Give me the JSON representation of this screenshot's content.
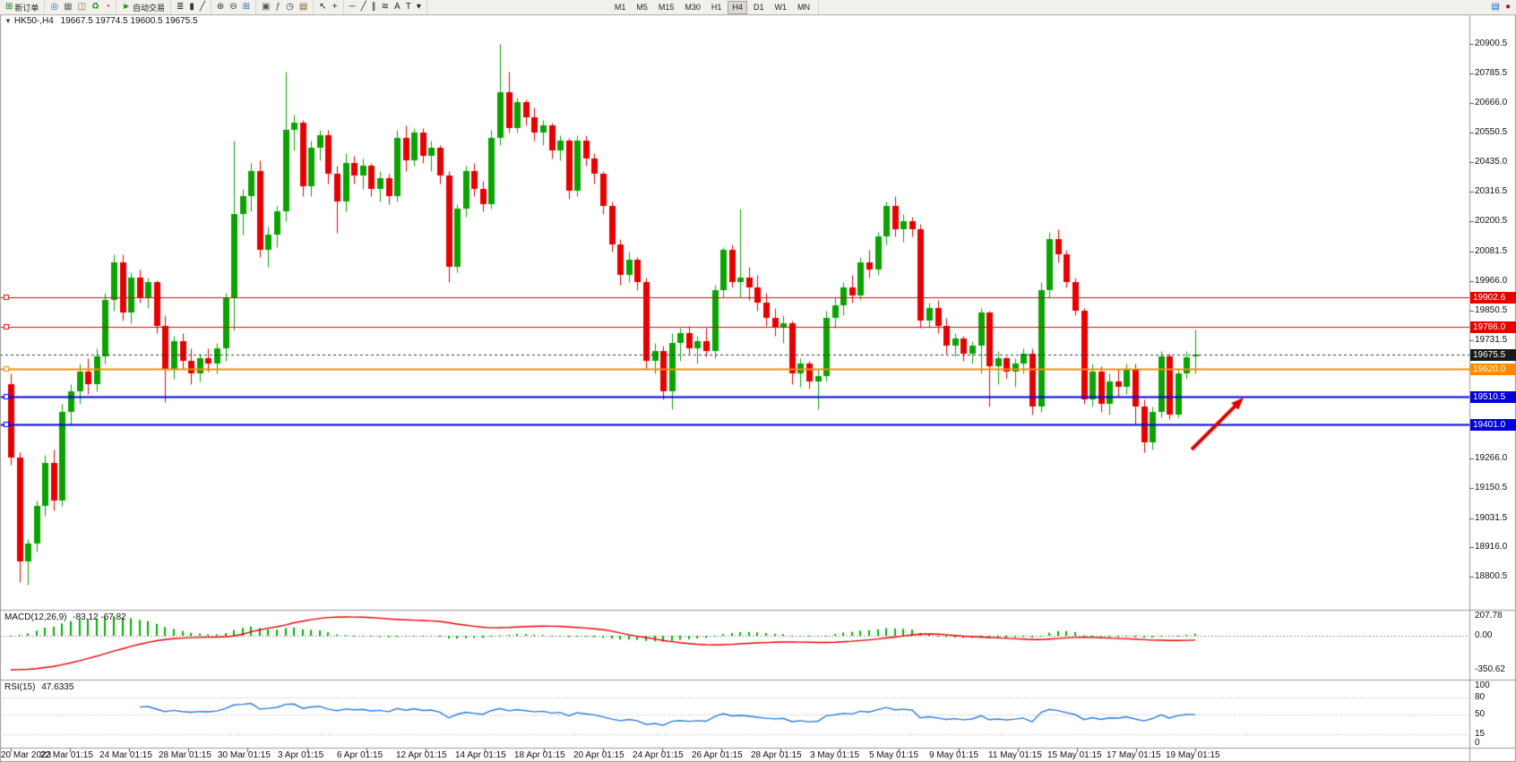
{
  "toolbar": {
    "groups": [
      {
        "name": "order-group",
        "items": [
          {
            "name": "new-order-button",
            "icon": "candle-plus",
            "icon_color": "#1a7a1a",
            "label": "新订单"
          }
        ]
      },
      {
        "name": "panels-group",
        "items": [
          {
            "name": "market-watch-button",
            "icon": "compass",
            "icon_color": "#1f5fbf"
          },
          {
            "name": "data-window-button",
            "icon": "grid",
            "icon_color": "#666666"
          },
          {
            "name": "navigator-button",
            "icon": "person",
            "icon_color": "#8a6d3b"
          },
          {
            "name": "terminal-button",
            "icon": "recycle",
            "icon_color": "#1a8a1a"
          },
          {
            "name": "strategy-tester-button",
            "icon": "gauge",
            "icon_color": "#b03030"
          }
        ]
      },
      {
        "name": "autotrade-group",
        "items": [
          {
            "name": "auto-trading-button",
            "icon": "play",
            "icon_color": "#14a014",
            "label": "自动交易"
          }
        ]
      },
      {
        "name": "chart-type-group",
        "items": [
          {
            "name": "bar-chart-type-button",
            "icon": "bars",
            "icon_color": "#333333"
          },
          {
            "name": "candlestick-type-button",
            "icon": "candles",
            "icon_color": "#333333"
          },
          {
            "name": "line-chart-type-button",
            "icon": "line",
            "icon_color": "#333333"
          }
        ]
      },
      {
        "name": "zoom-group",
        "items": [
          {
            "name": "zoom-in-button",
            "icon": "zoom-in",
            "icon_color": "#333333"
          },
          {
            "name": "zoom-out-button",
            "icon": "zoom-out",
            "icon_color": "#333333"
          },
          {
            "name": "tile-windows-button",
            "icon": "tiles",
            "icon_color": "#2a6db0"
          }
        ]
      },
      {
        "name": "tools-group",
        "items": [
          {
            "name": "arrange-windows-button",
            "icon": "arrange",
            "icon_color": "#555555"
          },
          {
            "name": "indicators-button",
            "icon": "indicator",
            "icon_color": "#1a7a1a"
          },
          {
            "name": "periods-dropdown-button",
            "icon": "clock",
            "icon_color": "#333333"
          },
          {
            "name": "templates-dropdown-button",
            "icon": "template",
            "icon_color": "#7a5a2a"
          }
        ]
      },
      {
        "name": "cursor-group",
        "items": [
          {
            "name": "cursor-button",
            "icon": "cursor",
            "icon_color": "#222222"
          },
          {
            "name": "crosshair-button",
            "icon": "crosshair",
            "icon_color": "#222222"
          }
        ]
      },
      {
        "name": "draw-group",
        "items": [
          {
            "name": "horizontal-line-button",
            "icon": "hline",
            "icon_color": "#222222"
          },
          {
            "name": "trendline-button",
            "icon": "trendline",
            "icon_color": "#222222"
          },
          {
            "name": "equidistant-channel-button",
            "icon": "channel",
            "icon_color": "#222222"
          },
          {
            "name": "fibonacci-button",
            "icon": "fibo",
            "icon_color": "#222222"
          },
          {
            "name": "text-button",
            "icon": "text-a",
            "icon_color": "#222222"
          },
          {
            "name": "label-button",
            "icon": "text-t",
            "icon_color": "#222222"
          },
          {
            "name": "arrows-dropdown-button",
            "icon": "arrow-down",
            "icon_color": "#222222"
          }
        ]
      }
    ],
    "timeframes": [
      "M1",
      "M5",
      "M15",
      "M30",
      "H1",
      "H4",
      "D1",
      "W1",
      "MN"
    ],
    "active_timeframe": "H4",
    "right_items": [
      {
        "name": "new-chart-window-button",
        "icon": "blue-doc",
        "icon_color": "#1f5fbf"
      },
      {
        "name": "alert-button",
        "icon": "alert",
        "icon_color": "#d01010"
      }
    ]
  },
  "chart": {
    "symbol_period": "HK50-,H4",
    "ohlc": "19667.5 19774.5 19600.5 19675.5",
    "current_price": "19675.5",
    "up_color": "#0aa300",
    "down_color": "#e60000",
    "price_ticks": [
      "20900.5",
      "20785.5",
      "20666.0",
      "20550.5",
      "20435.0",
      "20316.5",
      "20200.5",
      "20081.5",
      "19966.0",
      "19850.5",
      "19731.5",
      "19266.0",
      "19150.5",
      "19031.5",
      "18916.0",
      "18800.5"
    ],
    "levels": [
      {
        "price": 19902.6,
        "label": "19902.6",
        "color": "#e60000",
        "width": 1
      },
      {
        "price": 19786.0,
        "label": "19786.0",
        "color": "#e60000",
        "width": 1
      },
      {
        "price": 19620.0,
        "label": "19620.0",
        "color": "#ff8a00",
        "width": 2
      },
      {
        "price": 19510.5,
        "label": "19510.5",
        "color": "#0000dd",
        "width": 2
      },
      {
        "price": 19401.0,
        "label": "19401.0",
        "color": "#0000dd",
        "width": 2
      }
    ]
  },
  "chart_data": {
    "type": "candlestick",
    "symbol": "HK50-",
    "timeframe": "H4",
    "y_axis_range": [
      18800.5,
      20900.5
    ],
    "ohlc_current": {
      "open": 19667.5,
      "high": 19774.5,
      "low": 19600.5,
      "close": 19675.5
    },
    "x_labels": [
      "20 Mar 2023",
      "22 Mar 01:15",
      "24 Mar 01:15",
      "28 Mar 01:15",
      "30 Mar 01:15",
      "3 Apr 01:15",
      "6 Apr 01:15",
      "12 Apr 01:15",
      "14 Apr 01:15",
      "18 Apr 01:15",
      "20 Apr 01:15",
      "24 Apr 01:15",
      "26 Apr 01:15",
      "28 Apr 01:15",
      "3 May 01:15",
      "5 May 01:15",
      "9 May 01:15",
      "11 May 01:15",
      "15 May 01:15",
      "17 May 01:15",
      "19 May 01:15"
    ],
    "candles": [
      [
        19560,
        19600,
        19240,
        19270
      ],
      [
        19270,
        19290,
        18780,
        18860
      ],
      [
        18860,
        18950,
        18770,
        18930
      ],
      [
        18930,
        19100,
        18900,
        19080
      ],
      [
        19080,
        19280,
        19040,
        19250
      ],
      [
        19250,
        19300,
        19060,
        19100
      ],
      [
        19100,
        19480,
        19080,
        19450
      ],
      [
        19450,
        19560,
        19400,
        19530
      ],
      [
        19530,
        19640,
        19480,
        19610
      ],
      [
        19610,
        19660,
        19520,
        19560
      ],
      [
        19560,
        19700,
        19530,
        19670
      ],
      [
        19670,
        19920,
        19640,
        19890
      ],
      [
        19890,
        20070,
        19850,
        20040
      ],
      [
        20040,
        20070,
        19810,
        19840
      ],
      [
        19840,
        20000,
        19800,
        19980
      ],
      [
        19980,
        20010,
        19880,
        19900
      ],
      [
        19900,
        19980,
        19860,
        19960
      ],
      [
        19960,
        19970,
        19760,
        19790
      ],
      [
        19790,
        19830,
        19490,
        19620
      ],
      [
        19620,
        19750,
        19580,
        19730
      ],
      [
        19730,
        19760,
        19620,
        19650
      ],
      [
        19650,
        19700,
        19560,
        19600
      ],
      [
        19600,
        19680,
        19570,
        19660
      ],
      [
        19660,
        19700,
        19610,
        19640
      ],
      [
        19640,
        19720,
        19600,
        19700
      ],
      [
        19700,
        19920,
        19650,
        19900
      ],
      [
        19900,
        20520,
        19770,
        20230
      ],
      [
        20230,
        20330,
        20150,
        20300
      ],
      [
        20300,
        20430,
        20240,
        20400
      ],
      [
        20400,
        20440,
        20060,
        20090
      ],
      [
        20090,
        20180,
        20020,
        20150
      ],
      [
        20150,
        20260,
        20100,
        20240
      ],
      [
        20240,
        20790,
        20200,
        20560
      ],
      [
        20560,
        20620,
        20480,
        20590
      ],
      [
        20590,
        20600,
        20300,
        20340
      ],
      [
        20340,
        20520,
        20300,
        20490
      ],
      [
        20490,
        20560,
        20440,
        20540
      ],
      [
        20540,
        20560,
        20350,
        20390
      ],
      [
        20390,
        20420,
        20155,
        20280
      ],
      [
        20280,
        20470,
        20240,
        20430
      ],
      [
        20430,
        20460,
        20350,
        20380
      ],
      [
        20380,
        20450,
        20330,
        20420
      ],
      [
        20420,
        20430,
        20300,
        20330
      ],
      [
        20330,
        20400,
        20280,
        20370
      ],
      [
        20370,
        20390,
        20270,
        20300
      ],
      [
        20300,
        20560,
        20280,
        20530
      ],
      [
        20530,
        20580,
        20400,
        20440
      ],
      [
        20440,
        20570,
        20420,
        20550
      ],
      [
        20550,
        20570,
        20430,
        20460
      ],
      [
        20460,
        20520,
        20400,
        20490
      ],
      [
        20490,
        20500,
        20350,
        20380
      ],
      [
        20380,
        20400,
        19960,
        20020
      ],
      [
        20020,
        20270,
        20000,
        20250
      ],
      [
        20250,
        20420,
        20220,
        20400
      ],
      [
        20400,
        20430,
        20300,
        20330
      ],
      [
        20330,
        20360,
        20240,
        20270
      ],
      [
        20270,
        20560,
        20250,
        20530
      ],
      [
        20530,
        20900,
        20500,
        20710
      ],
      [
        20710,
        20790,
        20550,
        20570
      ],
      [
        20570,
        20690,
        20550,
        20670
      ],
      [
        20670,
        20680,
        20580,
        20610
      ],
      [
        20610,
        20650,
        20520,
        20550
      ],
      [
        20550,
        20600,
        20500,
        20580
      ],
      [
        20580,
        20590,
        20450,
        20480
      ],
      [
        20480,
        20540,
        20440,
        20520
      ],
      [
        20520,
        20530,
        20290,
        20320
      ],
      [
        20320,
        20540,
        20300,
        20520
      ],
      [
        20520,
        20540,
        20420,
        20450
      ],
      [
        20450,
        20470,
        20350,
        20390
      ],
      [
        20390,
        20400,
        20230,
        20260
      ],
      [
        20260,
        20280,
        20080,
        20110
      ],
      [
        20110,
        20130,
        19950,
        19990
      ],
      [
        19990,
        20080,
        19960,
        20050
      ],
      [
        20050,
        20060,
        19930,
        19960
      ],
      [
        19960,
        19980,
        19620,
        19650
      ],
      [
        19650,
        19720,
        19600,
        19690
      ],
      [
        19690,
        19710,
        19500,
        19530
      ],
      [
        19530,
        19760,
        19460,
        19720
      ],
      [
        19720,
        19780,
        19650,
        19760
      ],
      [
        19760,
        19790,
        19680,
        19700
      ],
      [
        19700,
        19750,
        19640,
        19730
      ],
      [
        19730,
        19780,
        19670,
        19690
      ],
      [
        19690,
        19950,
        19660,
        19930
      ],
      [
        19930,
        20100,
        19900,
        20090
      ],
      [
        20090,
        20110,
        19940,
        19960
      ],
      [
        19960,
        20250,
        19900,
        19980
      ],
      [
        19980,
        20020,
        19890,
        19940
      ],
      [
        19940,
        19990,
        19850,
        19880
      ],
      [
        19880,
        19920,
        19790,
        19820
      ],
      [
        19820,
        19860,
        19750,
        19780
      ],
      [
        19780,
        19830,
        19720,
        19800
      ],
      [
        19800,
        19810,
        19560,
        19600
      ],
      [
        19600,
        19660,
        19550,
        19640
      ],
      [
        19640,
        19650,
        19540,
        19570
      ],
      [
        19570,
        19620,
        19460,
        19590
      ],
      [
        19590,
        19850,
        19570,
        19820
      ],
      [
        19820,
        19900,
        19780,
        19870
      ],
      [
        19870,
        19960,
        19830,
        19940
      ],
      [
        19940,
        19990,
        19880,
        19910
      ],
      [
        19910,
        20060,
        19890,
        20040
      ],
      [
        20040,
        20090,
        19980,
        20010
      ],
      [
        20010,
        20160,
        19990,
        20140
      ],
      [
        20140,
        20280,
        20110,
        20260
      ],
      [
        20260,
        20300,
        20140,
        20170
      ],
      [
        20170,
        20230,
        20120,
        20200
      ],
      [
        20200,
        20220,
        20140,
        20170
      ],
      [
        20170,
        20190,
        19780,
        19810
      ],
      [
        19810,
        19880,
        19780,
        19860
      ],
      [
        19860,
        19890,
        19760,
        19790
      ],
      [
        19790,
        19820,
        19680,
        19710
      ],
      [
        19710,
        19760,
        19670,
        19740
      ],
      [
        19740,
        19750,
        19650,
        19680
      ],
      [
        19680,
        19730,
        19640,
        19710
      ],
      [
        19710,
        19860,
        19600,
        19840
      ],
      [
        19840,
        19850,
        19470,
        19630
      ],
      [
        19630,
        19690,
        19560,
        19660
      ],
      [
        19660,
        19670,
        19580,
        19610
      ],
      [
        19610,
        19660,
        19550,
        19640
      ],
      [
        19640,
        19700,
        19600,
        19680
      ],
      [
        19680,
        19700,
        19440,
        19470
      ],
      [
        19470,
        19960,
        19450,
        19930
      ],
      [
        19930,
        20160,
        19900,
        20130
      ],
      [
        20130,
        20170,
        20040,
        20070
      ],
      [
        20070,
        20090,
        19940,
        19960
      ],
      [
        19960,
        19980,
        19830,
        19850
      ],
      [
        19850,
        19860,
        19480,
        19500
      ],
      [
        19500,
        19640,
        19470,
        19610
      ],
      [
        19610,
        19630,
        19450,
        19480
      ],
      [
        19480,
        19600,
        19440,
        19570
      ],
      [
        19570,
        19620,
        19510,
        19550
      ],
      [
        19550,
        19640,
        19520,
        19620
      ],
      [
        19620,
        19640,
        19400,
        19470
      ],
      [
        19470,
        19500,
        19290,
        19330
      ],
      [
        19330,
        19470,
        19300,
        19450
      ],
      [
        19450,
        19690,
        19430,
        19670
      ],
      [
        19670,
        19680,
        19420,
        19440
      ],
      [
        19440,
        19620,
        19430,
        19600
      ],
      [
        19600,
        19690,
        19580,
        19665
      ],
      [
        19667.5,
        19774.5,
        19600.5,
        19675.5
      ]
    ]
  },
  "indicators": {
    "macd": {
      "label": "MACD(12,26,9)",
      "values": "-83.12 -67.82",
      "axis": [
        "207.78",
        "0.00",
        "-350.62"
      ],
      "fast": 12,
      "slow": 26,
      "signal": 9,
      "hist_color": "#00b300",
      "signal_color": "#e60000"
    },
    "rsi": {
      "label": "RSI(15)",
      "value": "47.6335",
      "axis": [
        100,
        80,
        50,
        15,
        0
      ],
      "period": 15,
      "line_color": "#2b7cd3",
      "levels": [
        80,
        50,
        15
      ]
    }
  },
  "annotation": {
    "type": "arrow",
    "color": "#e00000"
  }
}
